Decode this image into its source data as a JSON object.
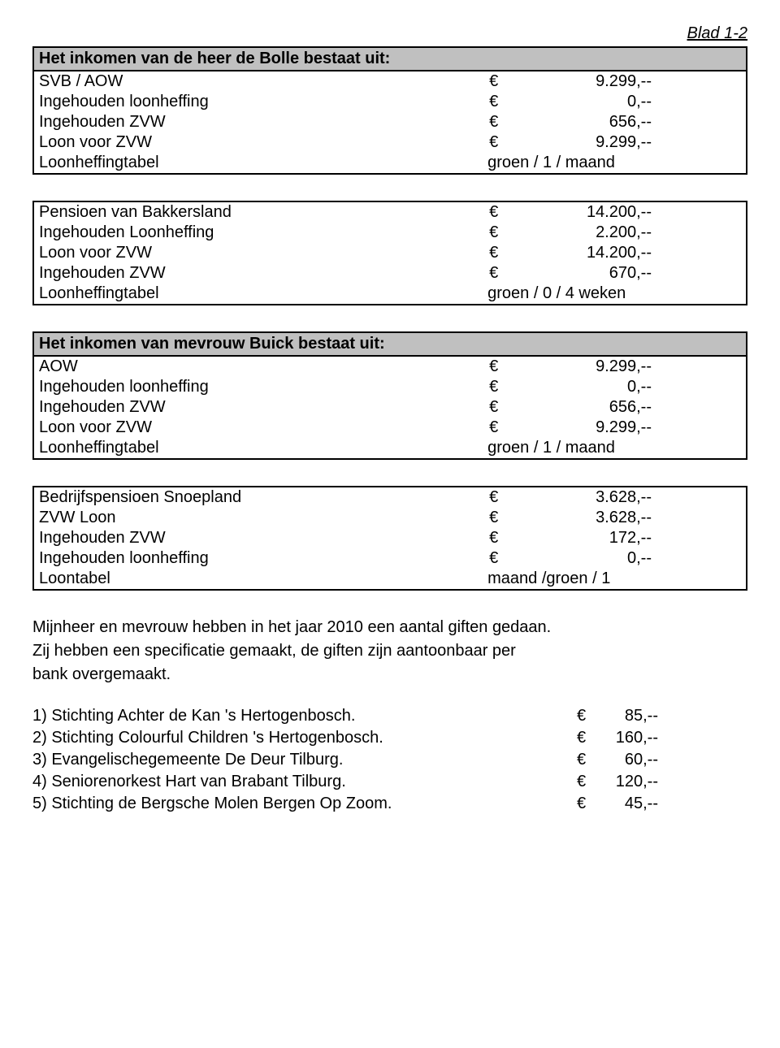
{
  "page_number": "Blad 1-2",
  "tables": [
    {
      "header": "Het inkomen van de heer de Bolle bestaat uit:",
      "rows": [
        {
          "label": "SVB / AOW",
          "currency": "€",
          "value": "9.299,--"
        },
        {
          "label": "Ingehouden loonheffing",
          "currency": "€",
          "value": "0,--"
        },
        {
          "label": "Ingehouden ZVW",
          "currency": "€",
          "value": "656,--"
        },
        {
          "label": "Loon voor ZVW",
          "currency": "€",
          "value": "9.299,--"
        },
        {
          "label": "Loonheffingtabel",
          "currency": "",
          "value": "groen / 1 / maand",
          "plain": true
        }
      ]
    },
    {
      "header": null,
      "rows": [
        {
          "label": "Pensioen van Bakkersland",
          "currency": "€",
          "value": "14.200,--"
        },
        {
          "label": "Ingehouden Loonheffing",
          "currency": "€",
          "value": "2.200,--"
        },
        {
          "label": "Loon voor ZVW",
          "currency": "€",
          "value": "14.200,--"
        },
        {
          "label": "Ingehouden ZVW",
          "currency": "€",
          "value": "670,--"
        },
        {
          "label": "Loonheffingtabel",
          "currency": "",
          "value": "groen / 0 / 4 weken",
          "plain": true
        }
      ]
    },
    {
      "header": "Het inkomen van mevrouw Buick bestaat uit:",
      "rows": [
        {
          "label": "AOW",
          "currency": "€",
          "value": "9.299,--"
        },
        {
          "label": "Ingehouden loonheffing",
          "currency": "€",
          "value": "0,--"
        },
        {
          "label": "Ingehouden ZVW",
          "currency": "€",
          "value": "656,--"
        },
        {
          "label": "Loon voor ZVW",
          "currency": "€",
          "value": "9.299,--"
        },
        {
          "label": "Loonheffingtabel",
          "currency": "",
          "value": "groen / 1 / maand",
          "plain": true
        }
      ]
    },
    {
      "header": null,
      "rows": [
        {
          "label": "Bedrijfspensioen Snoepland",
          "currency": "€",
          "value": "3.628,--"
        },
        {
          "label": "ZVW Loon",
          "currency": "€",
          "value": "3.628,--"
        },
        {
          "label": "Ingehouden ZVW",
          "currency": "€",
          "value": "172,--"
        },
        {
          "label": "Ingehouden loonheffing",
          "currency": "€",
          "value": "0,--"
        },
        {
          "label": "Loontabel",
          "currency": "",
          "value": "maand /groen / 1",
          "plain": true
        }
      ]
    }
  ],
  "body_paragraphs": [
    "Mijnheer en mevrouw hebben in het jaar 2010 een aantal giften gedaan.",
    "Zij hebben een specificatie gemaakt, de giften zijn aantoonbaar per",
    "bank overgemaakt."
  ],
  "gift_items": [
    {
      "label": "1) Stichting Achter de Kan 's Hertogenbosch.",
      "currency": "€",
      "value": "85,--"
    },
    {
      "label": "2) Stichting Colourful Children 's Hertogenbosch.",
      "currency": "€",
      "value": "160,--"
    },
    {
      "label": "3) Evangelischegemeente De Deur Tilburg.",
      "currency": "€",
      "value": "60,--"
    },
    {
      "label": "4) Seniorenorkest Hart van Brabant Tilburg.",
      "currency": "€",
      "value": "120,--"
    },
    {
      "label": "5) Stichting de Bergsche Molen Bergen Op Zoom.",
      "currency": "€",
      "value": "45,--"
    }
  ],
  "styles": {
    "header_bg": "#c0c0c0",
    "border_color": "#000000",
    "font_family": "Arial",
    "font_size_pt": 15
  }
}
